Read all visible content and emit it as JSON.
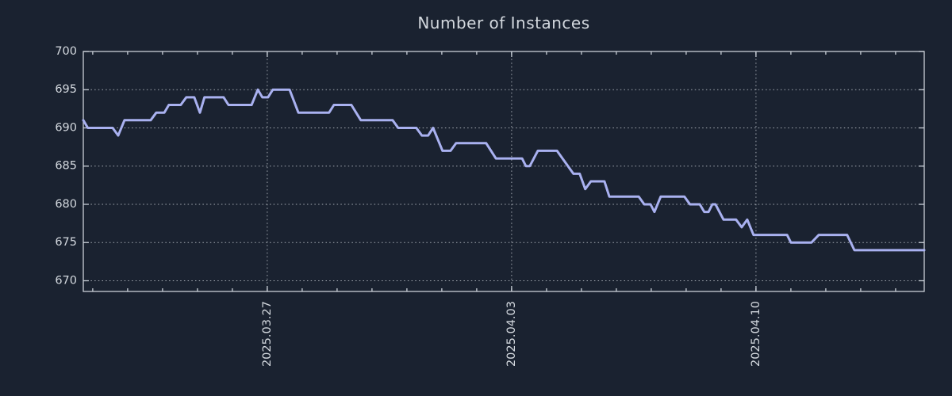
{
  "chart_data": {
    "type": "line",
    "title": "Number of Instances",
    "xlabel": "",
    "ylabel": "",
    "x_unit": "days relative to 2025-03-27",
    "xlim": [
      -5.27,
      18.82
    ],
    "ylim": [
      668.6,
      700
    ],
    "y_ticks": [
      670,
      675,
      680,
      685,
      690,
      695,
      700
    ],
    "x_major_ticks": [
      {
        "t": 0,
        "label": "2025.03.27"
      },
      {
        "t": 7,
        "label": "2025.04.03"
      },
      {
        "t": 14,
        "label": "2025.04.10"
      }
    ],
    "x_minor_tick_step_days": 1,
    "grid": "dotted",
    "legend": "none",
    "series": [
      {
        "name": "instances",
        "points": [
          [
            -5.27,
            691
          ],
          [
            -5.14,
            690
          ],
          [
            -4.43,
            690
          ],
          [
            -4.27,
            689
          ],
          [
            -4.09,
            691
          ],
          [
            -3.34,
            691
          ],
          [
            -3.18,
            692
          ],
          [
            -2.95,
            692
          ],
          [
            -2.82,
            693
          ],
          [
            -2.48,
            693
          ],
          [
            -2.32,
            694
          ],
          [
            -2.09,
            694
          ],
          [
            -1.93,
            692
          ],
          [
            -1.8,
            694
          ],
          [
            -1.25,
            694
          ],
          [
            -1.11,
            693
          ],
          [
            -0.45,
            693
          ],
          [
            -0.27,
            695
          ],
          [
            -0.14,
            694
          ],
          [
            0.02,
            694
          ],
          [
            0.16,
            695
          ],
          [
            0.64,
            695
          ],
          [
            0.89,
            692
          ],
          [
            1.77,
            692
          ],
          [
            1.91,
            693
          ],
          [
            2.41,
            693
          ],
          [
            2.68,
            691
          ],
          [
            3.59,
            691
          ],
          [
            3.75,
            690
          ],
          [
            4.27,
            690
          ],
          [
            4.43,
            689
          ],
          [
            4.61,
            689
          ],
          [
            4.75,
            690
          ],
          [
            5.02,
            687
          ],
          [
            5.25,
            687
          ],
          [
            5.41,
            688
          ],
          [
            6.27,
            688
          ],
          [
            6.55,
            686
          ],
          [
            7.3,
            686
          ],
          [
            7.41,
            685
          ],
          [
            7.52,
            685
          ],
          [
            7.75,
            687
          ],
          [
            8.3,
            687
          ],
          [
            8.77,
            684
          ],
          [
            8.95,
            684
          ],
          [
            9.11,
            682
          ],
          [
            9.27,
            683
          ],
          [
            9.66,
            683
          ],
          [
            9.8,
            681
          ],
          [
            10.64,
            681
          ],
          [
            10.8,
            680
          ],
          [
            10.98,
            680
          ],
          [
            11.09,
            679
          ],
          [
            11.27,
            681
          ],
          [
            11.95,
            681
          ],
          [
            12.11,
            680
          ],
          [
            12.39,
            680
          ],
          [
            12.52,
            679
          ],
          [
            12.64,
            679
          ],
          [
            12.75,
            680
          ],
          [
            12.84,
            680
          ],
          [
            13.07,
            678
          ],
          [
            13.43,
            678
          ],
          [
            13.59,
            677
          ],
          [
            13.75,
            678
          ],
          [
            13.93,
            676
          ],
          [
            14.89,
            676
          ],
          [
            15.0,
            675
          ],
          [
            15.59,
            675
          ],
          [
            15.8,
            676
          ],
          [
            16.61,
            676
          ],
          [
            16.82,
            674
          ],
          [
            18.82,
            674
          ]
        ]
      }
    ],
    "colors": {
      "background": "#1a2230",
      "line": "#a9b1f0",
      "grid": "#a6acb4",
      "frame": "#c9cfd7",
      "text": "#d3d8de"
    }
  }
}
